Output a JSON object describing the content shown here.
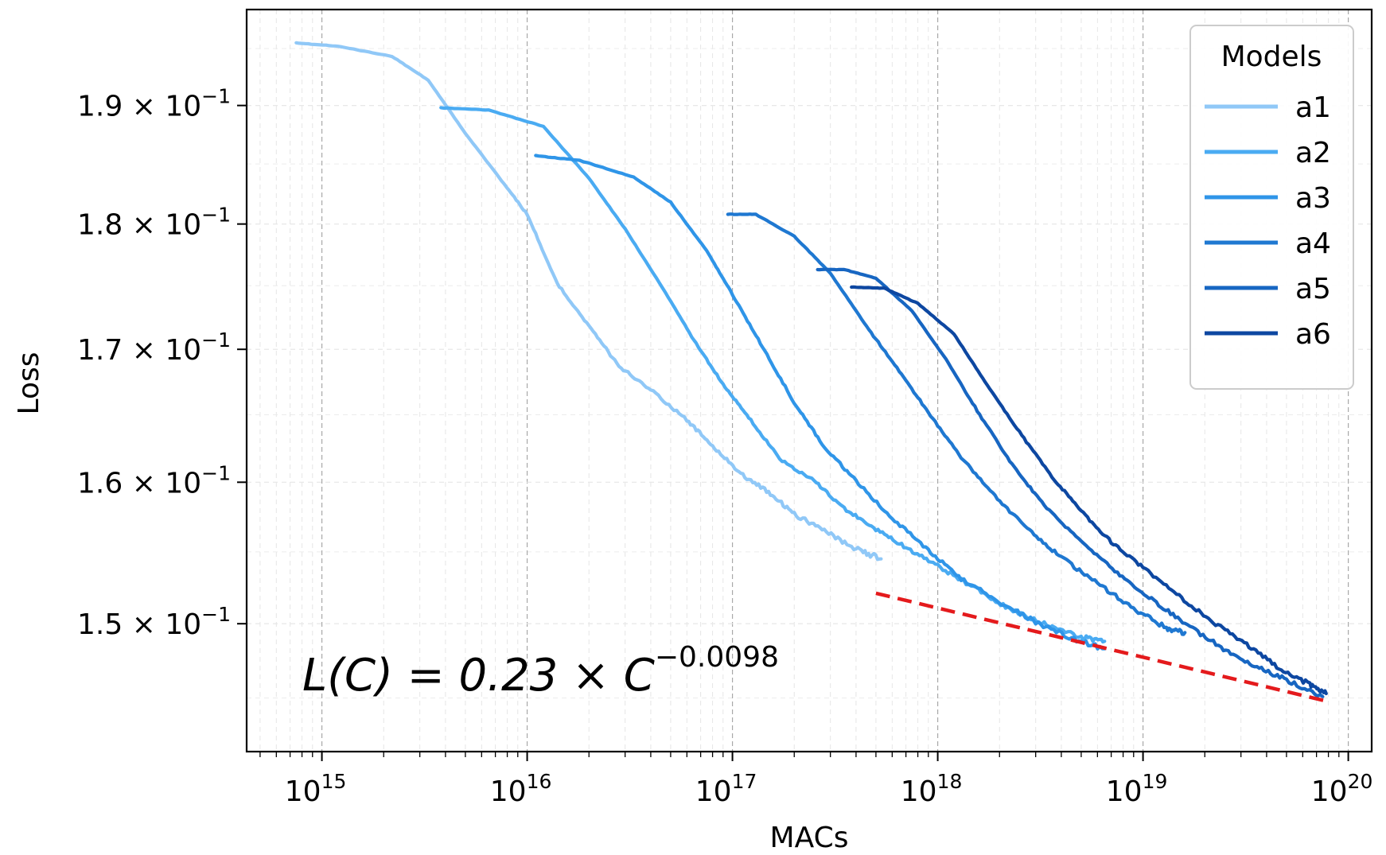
{
  "chart_data": {
    "type": "line",
    "title": "",
    "xlabel": "MACs",
    "ylabel": "Loss",
    "xscale": "log",
    "yscale": "log",
    "xlim": [
      430000000000000.0,
      1.3e+20
    ],
    "ylim": [
      0.1415,
      0.1985
    ],
    "grid": true,
    "x_ticks": [
      {
        "value": 1000000000000000.0,
        "base": "10",
        "exp": "15"
      },
      {
        "value": 1e+16,
        "base": "10",
        "exp": "16"
      },
      {
        "value": 1e+17,
        "base": "10",
        "exp": "17"
      },
      {
        "value": 1e+18,
        "base": "10",
        "exp": "18"
      },
      {
        "value": 1e+19,
        "base": "10",
        "exp": "19"
      },
      {
        "value": 1e+20,
        "base": "10",
        "exp": "20"
      }
    ],
    "y_ticks": [
      {
        "value": 0.19,
        "mant": "1.9",
        "times": "×",
        "base": "10",
        "exp": "−1"
      },
      {
        "value": 0.18,
        "mant": "1.8",
        "times": "×",
        "base": "10",
        "exp": "−1"
      },
      {
        "value": 0.17,
        "mant": "1.7",
        "times": "×",
        "base": "10",
        "exp": "−1"
      },
      {
        "value": 0.16,
        "mant": "1.6",
        "times": "×",
        "base": "10",
        "exp": "−1"
      },
      {
        "value": 0.15,
        "mant": "1.5",
        "times": "×",
        "base": "10",
        "exp": "−1"
      }
    ],
    "legend": {
      "title": "Models",
      "position": "top-right"
    },
    "series": [
      {
        "name": "a1",
        "color": "#90c8f7",
        "x": [
          750000000000000.0,
          1200000000000000.0,
          2200000000000000.0,
          3300000000000000.0,
          5000000000000000.0,
          7500000000000000.0,
          1e+16,
          1.4e+16,
          2e+16,
          2.8e+16,
          4e+16,
          6e+16,
          8e+16,
          1.1e+17,
          1.5e+17,
          2e+17,
          2.8e+17,
          4e+17,
          5.3e+17
        ],
        "y": [
          0.1955,
          0.1952,
          0.1943,
          0.1922,
          0.1876,
          0.1836,
          0.1808,
          0.1752,
          0.1718,
          0.1687,
          0.1669,
          0.1646,
          0.1627,
          0.1606,
          0.1593,
          0.1577,
          0.1565,
          0.1552,
          0.1545
        ]
      },
      {
        "name": "a2",
        "color": "#4aabf2",
        "x": [
          3800000000000000.0,
          6500000000000000.0,
          1.2e+16,
          2e+16,
          3e+16,
          4.5e+16,
          6.5e+16,
          9e+16,
          1.2e+17,
          1.7e+17,
          2.5e+17,
          3.5e+17,
          5e+17,
          7e+17,
          1e+18,
          1.5e+18,
          2.2e+18,
          3.3e+18,
          5e+18,
          6.5e+18
        ],
        "y": [
          0.1898,
          0.1896,
          0.1882,
          0.1838,
          0.1796,
          0.175,
          0.1707,
          0.1673,
          0.1648,
          0.1617,
          0.1601,
          0.1581,
          0.1566,
          0.1553,
          0.154,
          0.1525,
          0.1511,
          0.15,
          0.1491,
          0.1488
        ]
      },
      {
        "name": "a3",
        "color": "#2f95e8",
        "x": [
          1.1e+16,
          1.8e+16,
          3.3e+16,
          5e+16,
          7.5e+16,
          1e+17,
          1.4e+17,
          2e+17,
          2.8e+17,
          4e+17,
          6e+17,
          9e+17,
          1.3e+18,
          2e+18,
          3e+18,
          4.5e+18,
          6.5e+18
        ],
        "y": [
          0.1857,
          0.1853,
          0.1839,
          0.1818,
          0.1778,
          0.1743,
          0.1702,
          0.1659,
          0.1626,
          0.1601,
          0.1574,
          0.1551,
          0.1531,
          0.1515,
          0.1501,
          0.149,
          0.1483
        ]
      },
      {
        "name": "a4",
        "color": "#1f78d1",
        "x": [
          9.5e+16,
          1.3e+17,
          2e+17,
          3e+17,
          4.5e+17,
          6.5e+17,
          9e+17,
          1.3e+18,
          1.9e+18,
          2.8e+18,
          4e+18,
          6e+18,
          9e+18,
          1.3e+19,
          1.6e+19
        ],
        "y": [
          0.1808,
          0.1808,
          0.179,
          0.176,
          0.1718,
          0.1683,
          0.1652,
          0.1618,
          0.159,
          0.1565,
          0.1546,
          0.1528,
          0.151,
          0.1497,
          0.1494
        ]
      },
      {
        "name": "a5",
        "color": "#1766c2",
        "x": [
          2.6e+17,
          3.5e+17,
          5e+17,
          7.5e+17,
          1.1e+18,
          1.6e+18,
          2.3e+18,
          3.3e+18,
          5e+18,
          7.5e+18,
          1.1e+19,
          1.6e+19,
          2.4e+19,
          3.5e+19,
          5e+19,
          7.5e+19
        ],
        "y": [
          0.1763,
          0.1763,
          0.1756,
          0.173,
          0.1692,
          0.165,
          0.1613,
          0.1583,
          0.1557,
          0.1535,
          0.1517,
          0.15,
          0.1484,
          0.1471,
          0.1462,
          0.1451
        ]
      },
      {
        "name": "a6",
        "color": "#0d47a1",
        "x": [
          3.8e+17,
          5.5e+17,
          8e+17,
          1.2e+18,
          1.7e+18,
          2.5e+18,
          3.6e+18,
          5e+18,
          7e+18,
          1e+19,
          1.5e+19,
          2.2e+19,
          3.2e+19,
          4.6e+19,
          6.5e+19,
          7.8e+19
        ],
        "y": [
          0.1749,
          0.1748,
          0.1736,
          0.1712,
          0.1675,
          0.1637,
          0.1604,
          0.1579,
          0.1557,
          0.1539,
          0.1519,
          0.1501,
          0.1486,
          0.147,
          0.1459,
          0.1453
        ]
      }
    ],
    "fit_line": {
      "color": "#e41a1c",
      "style": "dashed",
      "x": [
        5e+17,
        7.8e+19
      ],
      "y": [
        0.1521,
        0.1448
      ]
    },
    "annotation": {
      "text": "L(C) = 0.23 × C",
      "exp": "−0.0098"
    }
  }
}
